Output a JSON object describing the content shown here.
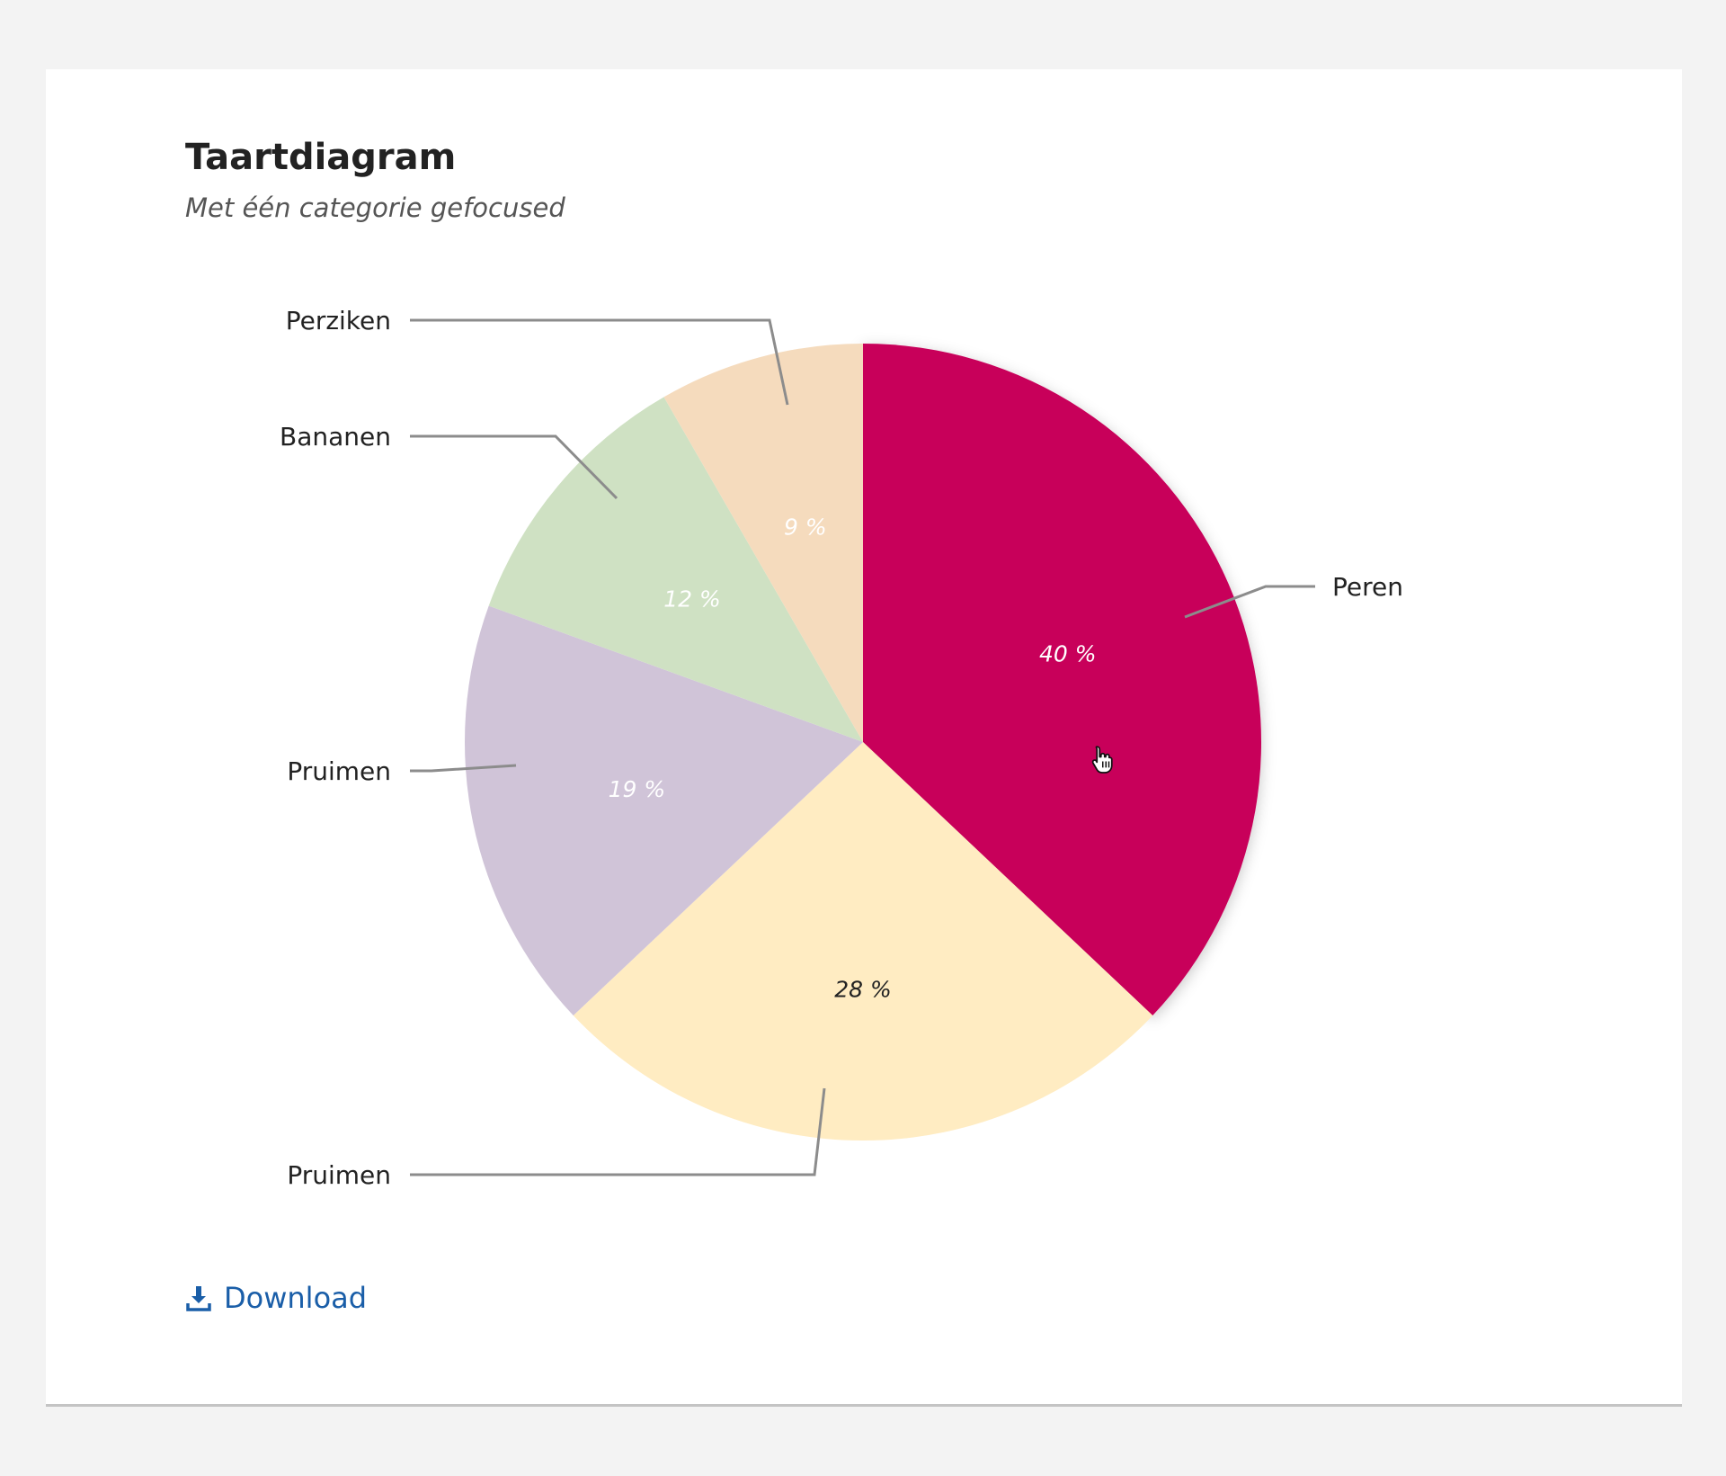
{
  "header": {
    "title": "Taartdiagram",
    "subtitle": "Met één categorie gefocused"
  },
  "download": {
    "label": "Download"
  },
  "chart_data": {
    "type": "pie",
    "title": "Taartdiagram",
    "subtitle": "Met één categorie gefocused",
    "focused_category": "Peren",
    "start_angle_deg": 0,
    "direction": "clockwise",
    "slices": [
      {
        "label": "Peren",
        "value": 40,
        "value_label": "40 %",
        "color": "#c8005a",
        "value_color": "#ffffff"
      },
      {
        "label": "Pruimen",
        "value": 28,
        "value_label": "28 %",
        "color": "#ffecc2",
        "value_color": "#222222"
      },
      {
        "label": "Pruimen",
        "value": 19,
        "value_label": "19 %",
        "color": "#d0c4d8",
        "value_color": "#ffffff"
      },
      {
        "label": "Bananen",
        "value": 12,
        "value_label": "12 %",
        "color": "#cfe1c3",
        "value_color": "#ffffff"
      },
      {
        "label": "Perziken",
        "value": 9,
        "value_label": "9 %",
        "color": "#f5dbbd",
        "value_color": "#ffffff"
      }
    ],
    "leader_line_color": "#8c8c8c"
  }
}
